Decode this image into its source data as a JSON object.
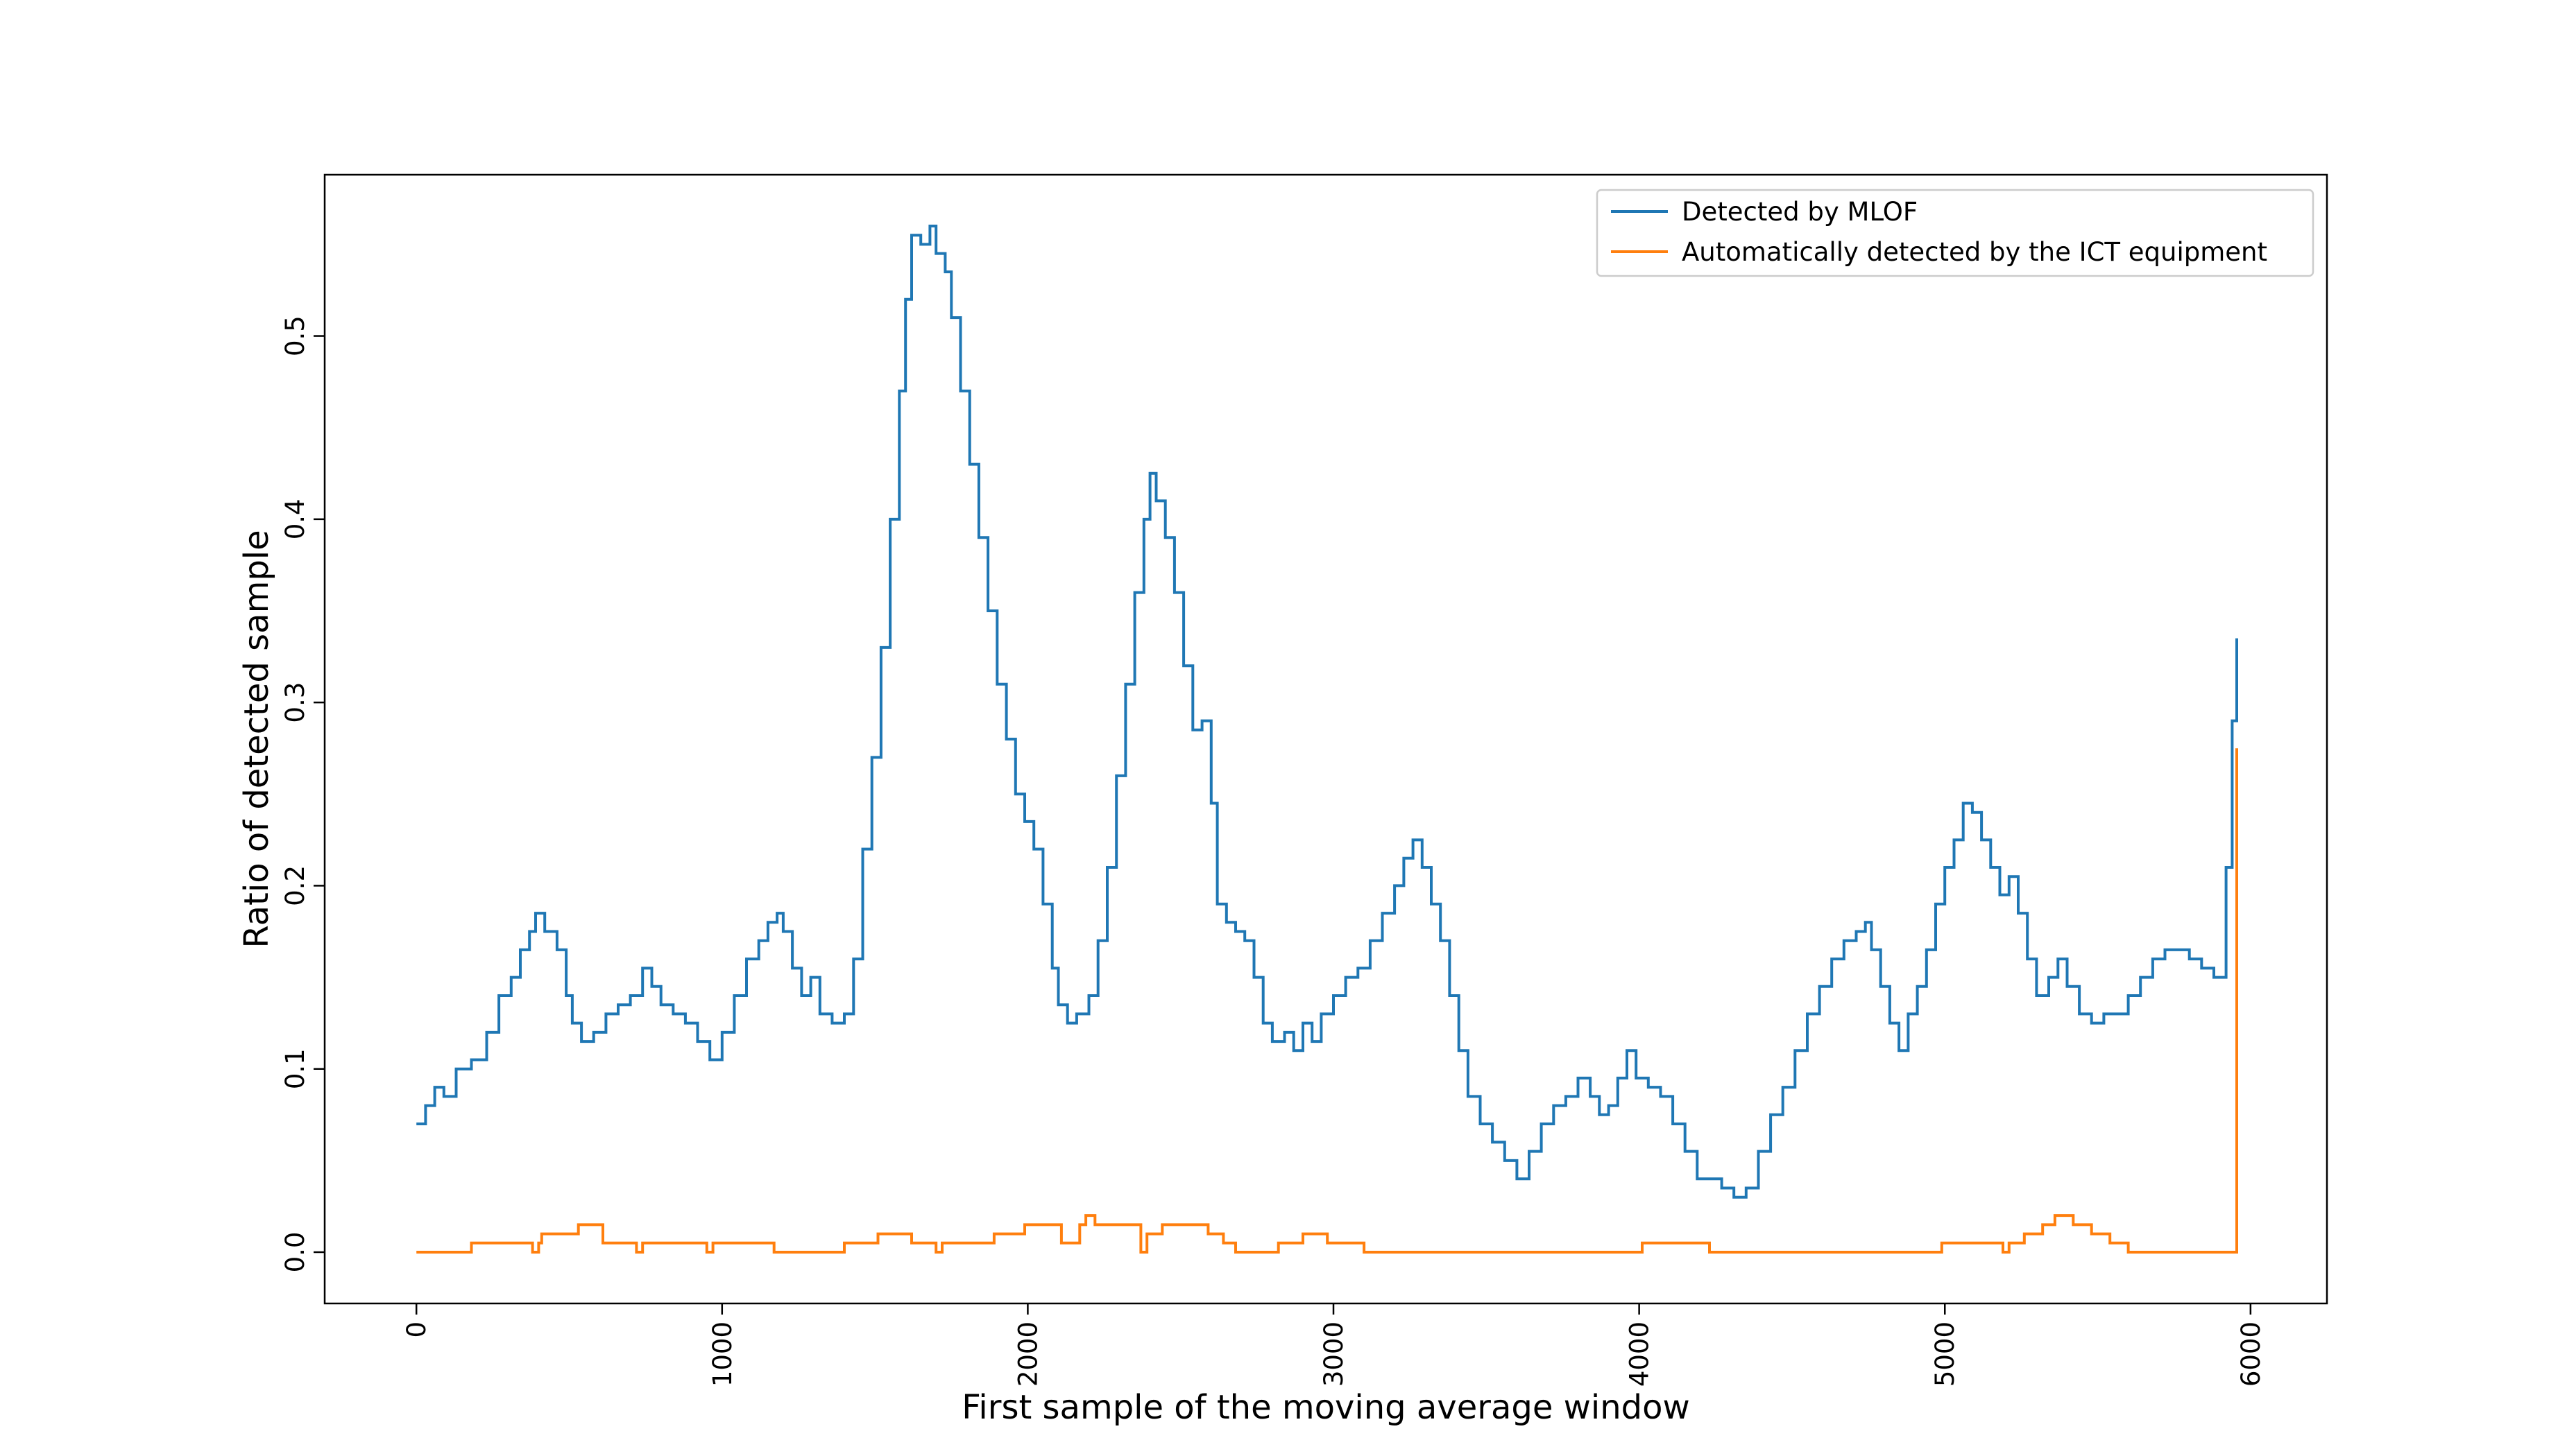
{
  "chart_data": {
    "type": "line",
    "title": "",
    "xlabel": "First sample of the moving average window",
    "ylabel": "Ratio of detected sample",
    "xlim": [
      -300,
      6250
    ],
    "ylim": [
      -0.028,
      0.588
    ],
    "xticks": [
      0,
      1000,
      2000,
      3000,
      4000,
      5000,
      6000
    ],
    "yticks": [
      0.0,
      0.1,
      0.2,
      0.3,
      0.4,
      0.5
    ],
    "xtick_labels": [
      "0",
      "1000",
      "2000",
      "3000",
      "4000",
      "5000",
      "6000"
    ],
    "ytick_labels": [
      "0.0",
      "0.1",
      "0.2",
      "0.3",
      "0.4",
      "0.5"
    ],
    "xtick_rotation": 90,
    "ytick_rotation": 90,
    "grid": false,
    "legend_position": "top-right",
    "series": [
      {
        "name": "Detected by MLOF",
        "color": "#1f77b4",
        "style": "step",
        "points": [
          [
            0,
            0.07
          ],
          [
            30,
            0.08
          ],
          [
            60,
            0.09
          ],
          [
            90,
            0.085
          ],
          [
            130,
            0.1
          ],
          [
            180,
            0.105
          ],
          [
            230,
            0.12
          ],
          [
            270,
            0.14
          ],
          [
            310,
            0.15
          ],
          [
            340,
            0.165
          ],
          [
            370,
            0.175
          ],
          [
            390,
            0.185
          ],
          [
            420,
            0.175
          ],
          [
            460,
            0.165
          ],
          [
            490,
            0.14
          ],
          [
            510,
            0.125
          ],
          [
            540,
            0.115
          ],
          [
            580,
            0.12
          ],
          [
            620,
            0.13
          ],
          [
            660,
            0.135
          ],
          [
            700,
            0.14
          ],
          [
            740,
            0.155
          ],
          [
            770,
            0.145
          ],
          [
            800,
            0.135
          ],
          [
            840,
            0.13
          ],
          [
            880,
            0.125
          ],
          [
            920,
            0.115
          ],
          [
            960,
            0.105
          ],
          [
            1000,
            0.12
          ],
          [
            1040,
            0.14
          ],
          [
            1080,
            0.16
          ],
          [
            1120,
            0.17
          ],
          [
            1150,
            0.18
          ],
          [
            1180,
            0.185
          ],
          [
            1200,
            0.175
          ],
          [
            1230,
            0.155
          ],
          [
            1260,
            0.14
          ],
          [
            1290,
            0.15
          ],
          [
            1320,
            0.13
          ],
          [
            1360,
            0.125
          ],
          [
            1400,
            0.13
          ],
          [
            1430,
            0.16
          ],
          [
            1460,
            0.22
          ],
          [
            1490,
            0.27
          ],
          [
            1520,
            0.33
          ],
          [
            1550,
            0.4
          ],
          [
            1580,
            0.47
          ],
          [
            1600,
            0.52
          ],
          [
            1620,
            0.555
          ],
          [
            1650,
            0.55
          ],
          [
            1680,
            0.56
          ],
          [
            1700,
            0.545
          ],
          [
            1730,
            0.535
          ],
          [
            1750,
            0.51
          ],
          [
            1780,
            0.47
          ],
          [
            1810,
            0.43
          ],
          [
            1840,
            0.39
          ],
          [
            1870,
            0.35
          ],
          [
            1900,
            0.31
          ],
          [
            1930,
            0.28
          ],
          [
            1960,
            0.25
          ],
          [
            1990,
            0.235
          ],
          [
            2020,
            0.22
          ],
          [
            2050,
            0.19
          ],
          [
            2080,
            0.155
          ],
          [
            2100,
            0.135
          ],
          [
            2130,
            0.125
          ],
          [
            2160,
            0.13
          ],
          [
            2200,
            0.14
          ],
          [
            2230,
            0.17
          ],
          [
            2260,
            0.21
          ],
          [
            2290,
            0.26
          ],
          [
            2320,
            0.31
          ],
          [
            2350,
            0.36
          ],
          [
            2380,
            0.4
          ],
          [
            2400,
            0.425
          ],
          [
            2420,
            0.41
          ],
          [
            2450,
            0.39
          ],
          [
            2480,
            0.36
          ],
          [
            2510,
            0.32
          ],
          [
            2540,
            0.285
          ],
          [
            2570,
            0.29
          ],
          [
            2600,
            0.245
          ],
          [
            2620,
            0.19
          ],
          [
            2650,
            0.18
          ],
          [
            2680,
            0.175
          ],
          [
            2710,
            0.17
          ],
          [
            2740,
            0.15
          ],
          [
            2770,
            0.125
          ],
          [
            2800,
            0.115
          ],
          [
            2840,
            0.12
          ],
          [
            2870,
            0.11
          ],
          [
            2900,
            0.125
          ],
          [
            2930,
            0.115
          ],
          [
            2960,
            0.13
          ],
          [
            3000,
            0.14
          ],
          [
            3040,
            0.15
          ],
          [
            3080,
            0.155
          ],
          [
            3120,
            0.17
          ],
          [
            3160,
            0.185
          ],
          [
            3200,
            0.2
          ],
          [
            3230,
            0.215
          ],
          [
            3260,
            0.225
          ],
          [
            3290,
            0.21
          ],
          [
            3320,
            0.19
          ],
          [
            3350,
            0.17
          ],
          [
            3380,
            0.14
          ],
          [
            3410,
            0.11
          ],
          [
            3440,
            0.085
          ],
          [
            3480,
            0.07
          ],
          [
            3520,
            0.06
          ],
          [
            3560,
            0.05
          ],
          [
            3600,
            0.04
          ],
          [
            3640,
            0.055
          ],
          [
            3680,
            0.07
          ],
          [
            3720,
            0.08
          ],
          [
            3760,
            0.085
          ],
          [
            3800,
            0.095
          ],
          [
            3840,
            0.085
          ],
          [
            3870,
            0.075
          ],
          [
            3900,
            0.08
          ],
          [
            3930,
            0.095
          ],
          [
            3960,
            0.11
          ],
          [
            3990,
            0.095
          ],
          [
            4030,
            0.09
          ],
          [
            4070,
            0.085
          ],
          [
            4110,
            0.07
          ],
          [
            4150,
            0.055
          ],
          [
            4190,
            0.04
          ],
          [
            4230,
            0.04
          ],
          [
            4270,
            0.035
          ],
          [
            4310,
            0.03
          ],
          [
            4350,
            0.035
          ],
          [
            4390,
            0.055
          ],
          [
            4430,
            0.075
          ],
          [
            4470,
            0.09
          ],
          [
            4510,
            0.11
          ],
          [
            4550,
            0.13
          ],
          [
            4590,
            0.145
          ],
          [
            4630,
            0.16
          ],
          [
            4670,
            0.17
          ],
          [
            4710,
            0.175
          ],
          [
            4740,
            0.18
          ],
          [
            4760,
            0.165
          ],
          [
            4790,
            0.145
          ],
          [
            4820,
            0.125
          ],
          [
            4850,
            0.11
          ],
          [
            4880,
            0.13
          ],
          [
            4910,
            0.145
          ],
          [
            4940,
            0.165
          ],
          [
            4970,
            0.19
          ],
          [
            5000,
            0.21
          ],
          [
            5030,
            0.225
          ],
          [
            5060,
            0.245
          ],
          [
            5090,
            0.24
          ],
          [
            5120,
            0.225
          ],
          [
            5150,
            0.21
          ],
          [
            5180,
            0.195
          ],
          [
            5210,
            0.205
          ],
          [
            5240,
            0.185
          ],
          [
            5270,
            0.16
          ],
          [
            5300,
            0.14
          ],
          [
            5340,
            0.15
          ],
          [
            5370,
            0.16
          ],
          [
            5400,
            0.145
          ],
          [
            5440,
            0.13
          ],
          [
            5480,
            0.125
          ],
          [
            5520,
            0.13
          ],
          [
            5560,
            0.13
          ],
          [
            5600,
            0.14
          ],
          [
            5640,
            0.15
          ],
          [
            5680,
            0.16
          ],
          [
            5720,
            0.165
          ],
          [
            5760,
            0.165
          ],
          [
            5800,
            0.16
          ],
          [
            5840,
            0.155
          ],
          [
            5880,
            0.15
          ],
          [
            5920,
            0.21
          ],
          [
            5940,
            0.29
          ],
          [
            5955,
            0.335
          ]
        ]
      },
      {
        "name": "Automatically detected by the ICT equipment",
        "color": "#ff7f0e",
        "style": "step",
        "points": [
          [
            0,
            0.0
          ],
          [
            180,
            0.005
          ],
          [
            380,
            0.0
          ],
          [
            400,
            0.005
          ],
          [
            410,
            0.01
          ],
          [
            530,
            0.015
          ],
          [
            610,
            0.005
          ],
          [
            720,
            0.0
          ],
          [
            740,
            0.005
          ],
          [
            950,
            0.0
          ],
          [
            970,
            0.005
          ],
          [
            1170,
            0.0
          ],
          [
            1400,
            0.005
          ],
          [
            1510,
            0.01
          ],
          [
            1620,
            0.005
          ],
          [
            1700,
            0.0
          ],
          [
            1720,
            0.005
          ],
          [
            1890,
            0.01
          ],
          [
            1990,
            0.015
          ],
          [
            2110,
            0.005
          ],
          [
            2170,
            0.015
          ],
          [
            2190,
            0.02
          ],
          [
            2220,
            0.015
          ],
          [
            2370,
            0.0
          ],
          [
            2390,
            0.01
          ],
          [
            2440,
            0.015
          ],
          [
            2590,
            0.01
          ],
          [
            2640,
            0.005
          ],
          [
            2680,
            0.0
          ],
          [
            2820,
            0.005
          ],
          [
            2900,
            0.01
          ],
          [
            2980,
            0.005
          ],
          [
            3100,
            0.0
          ],
          [
            4010,
            0.005
          ],
          [
            4230,
            0.0
          ],
          [
            4990,
            0.005
          ],
          [
            5190,
            0.0
          ],
          [
            5210,
            0.005
          ],
          [
            5260,
            0.01
          ],
          [
            5320,
            0.015
          ],
          [
            5360,
            0.02
          ],
          [
            5420,
            0.015
          ],
          [
            5480,
            0.01
          ],
          [
            5540,
            0.005
          ],
          [
            5600,
            0.0
          ],
          [
            5910,
            0.0
          ],
          [
            5955,
            0.275
          ]
        ]
      }
    ]
  }
}
